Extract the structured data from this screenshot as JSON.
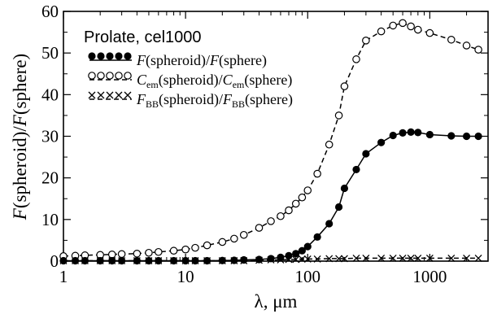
{
  "chart_data": {
    "type": "line",
    "title": "",
    "annotation": "Prolate, cel1000",
    "xlabel": {
      "sym": "λ",
      "unit": ", μm"
    },
    "ylabel": {
      "p1": "F",
      "p2": "(spheroid)/",
      "p3": "F",
      "p4": "(sphere)"
    },
    "xscale": "log",
    "xlim": [
      1,
      3000
    ],
    "ylim": [
      0,
      60
    ],
    "grid": false,
    "legend_position": "upper-left",
    "x_ticks": [
      {
        "value": 1,
        "label": "1"
      },
      {
        "value": 10,
        "label": "10"
      },
      {
        "value": 100,
        "label": "100"
      },
      {
        "value": 1000,
        "label": "1000"
      }
    ],
    "y_ticks": [
      {
        "value": 0,
        "label": "0"
      },
      {
        "value": 10,
        "label": "10"
      },
      {
        "value": 20,
        "label": "20"
      },
      {
        "value": 30,
        "label": "30"
      },
      {
        "value": 40,
        "label": "40"
      },
      {
        "value": 50,
        "label": "50"
      },
      {
        "value": 60,
        "label": "60"
      }
    ],
    "series": [
      {
        "key": "flux",
        "marker": "filled-circle",
        "line": "solid",
        "legend": {
          "a": "F",
          "b": "(spheroid)/",
          "c": "F",
          "d": "(sphere)"
        },
        "x": [
          1,
          1.25,
          1.5,
          2,
          2.5,
          3,
          4,
          5,
          6,
          8,
          10,
          12,
          15,
          20,
          25,
          30,
          40,
          50,
          60,
          70,
          80,
          90,
          100,
          120,
          150,
          180,
          200,
          250,
          300,
          400,
          500,
          600,
          700,
          800,
          1000,
          1500,
          2000,
          2500
        ],
        "y": [
          0.1,
          0.1,
          0.1,
          0.1,
          0.1,
          0.1,
          0.1,
          0.1,
          0.1,
          0.1,
          0.1,
          0.1,
          0.1,
          0.15,
          0.2,
          0.3,
          0.4,
          0.6,
          0.9,
          1.3,
          1.8,
          2.5,
          3.5,
          5.8,
          9.0,
          13.0,
          17.5,
          22.0,
          25.8,
          28.5,
          30.2,
          30.8,
          31.0,
          30.9,
          30.4,
          30.1,
          30.0,
          30.0
        ]
      },
      {
        "key": "cem",
        "marker": "open-circle",
        "line": "dashed",
        "legend": {
          "a": "C",
          "asub": "em",
          "b": "(spheroid)/",
          "c": "C",
          "csub": "em",
          "d": "(sphere)"
        },
        "x": [
          1,
          1.25,
          1.5,
          2,
          2.5,
          3,
          4,
          5,
          6,
          8,
          10,
          12,
          15,
          20,
          25,
          30,
          40,
          50,
          60,
          70,
          80,
          90,
          100,
          120,
          150,
          180,
          200,
          250,
          300,
          400,
          500,
          600,
          700,
          800,
          1000,
          1500,
          2000,
          2500
        ],
        "y": [
          1.2,
          1.3,
          1.4,
          1.5,
          1.6,
          1.7,
          1.8,
          2.0,
          2.2,
          2.5,
          2.8,
          3.2,
          3.8,
          4.6,
          5.4,
          6.3,
          8.0,
          9.6,
          10.8,
          12.2,
          13.8,
          15.3,
          17.0,
          21.0,
          28.0,
          35.0,
          42.0,
          48.5,
          53.0,
          55.2,
          56.6,
          57.2,
          56.4,
          55.6,
          54.8,
          53.2,
          51.8,
          50.8
        ]
      },
      {
        "key": "fbb",
        "marker": "cross",
        "line": "dashed",
        "legend": {
          "a": "F",
          "asub": "BB",
          "b": "(spheroid)/",
          "c": "F",
          "csub": "BB",
          "d": "(sphere)"
        },
        "x": [
          1,
          1.25,
          1.5,
          2,
          2.5,
          3,
          4,
          5,
          6,
          8,
          10,
          12,
          15,
          20,
          25,
          30,
          40,
          50,
          60,
          70,
          80,
          90,
          100,
          120,
          150,
          180,
          200,
          250,
          300,
          400,
          500,
          600,
          700,
          800,
          1000,
          1500,
          2000,
          2500
        ],
        "y": [
          0.1,
          0.1,
          0.1,
          0.1,
          0.1,
          0.1,
          0.1,
          0.1,
          0.1,
          0.1,
          0.1,
          0.1,
          0.1,
          0.1,
          0.1,
          0.1,
          0.2,
          0.3,
          0.3,
          0.4,
          0.4,
          0.5,
          0.5,
          0.5,
          0.6,
          0.6,
          0.6,
          0.7,
          0.7,
          0.7,
          0.7,
          0.7,
          0.7,
          0.7,
          0.7,
          0.7,
          0.7,
          0.7
        ]
      }
    ]
  }
}
